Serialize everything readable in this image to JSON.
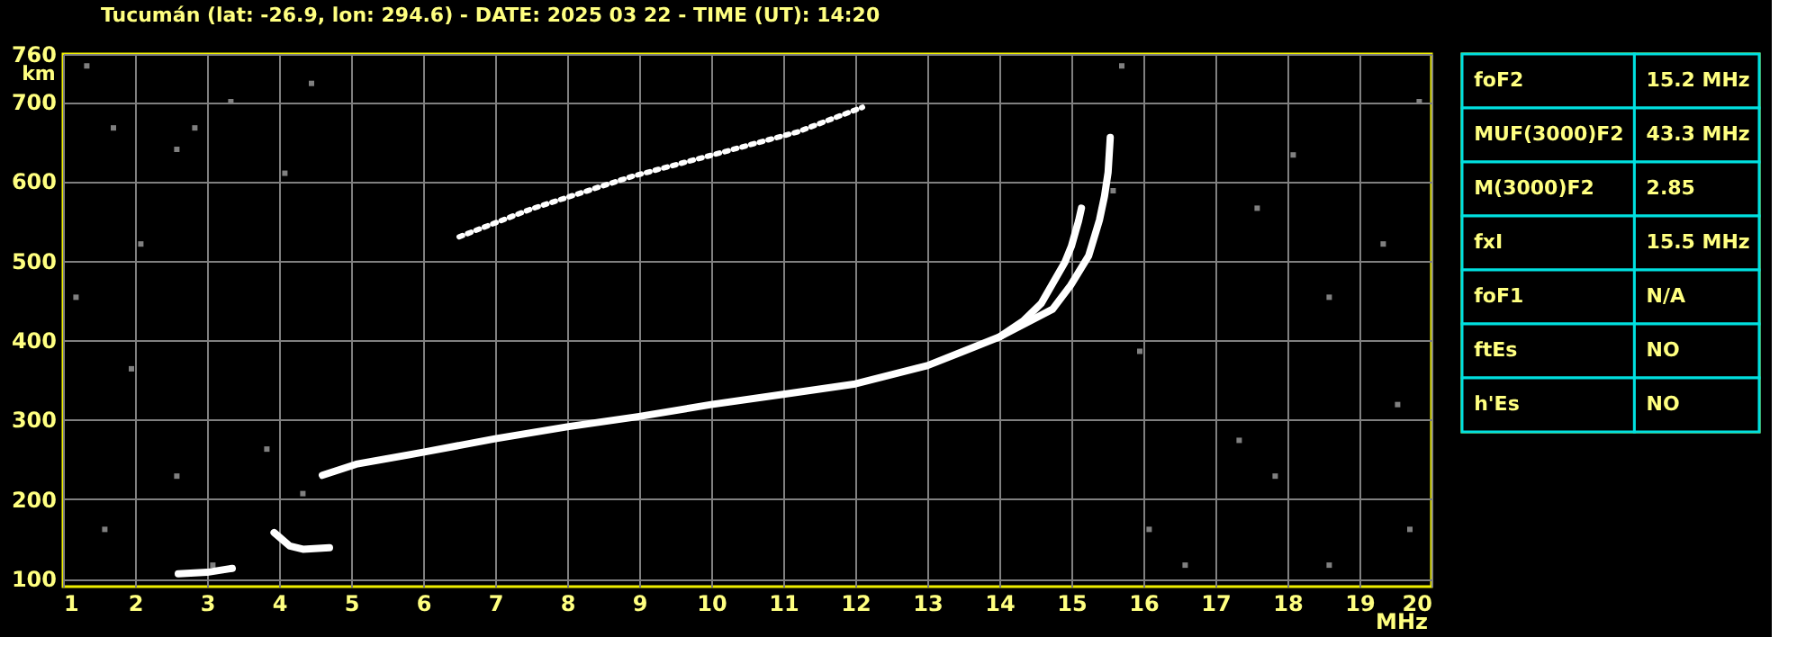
{
  "chart_data": [
    {
      "type": "line",
      "title": "Tucumán (lat: -26.9, lon: 294.6) - DATE: 2025 03 22 - TIME (UT): 14:20",
      "xlabel": "MHz",
      "ylabel": "km",
      "xlim": [
        1,
        20
      ],
      "ylim": [
        90,
        760
      ],
      "xticks": [
        1,
        2,
        3,
        4,
        5,
        6,
        7,
        8,
        9,
        10,
        11,
        12,
        13,
        14,
        15,
        16,
        17,
        18,
        19,
        20
      ],
      "yticks": [
        100,
        200,
        300,
        400,
        500,
        600,
        700,
        760
      ],
      "grid": true,
      "series": [
        {
          "type": "scatter",
          "marker": "square",
          "color": "#808080",
          "x": [
            1.33,
            1.7,
            2.58,
            2.83,
            4.45,
            4.08,
            1.18,
            1.95,
            2.58,
            1.58,
            4.33,
            3.83,
            15.95,
            16.08,
            17.33,
            18.58,
            19.33,
            19.7,
            19.83,
            18.08,
            16.58,
            18.58,
            17.83,
            15.7,
            3.08,
            2.08,
            3.33,
            17.58,
            19.53,
            15.58
          ],
          "values": [
            745,
            667,
            640,
            667,
            723,
            610,
            454,
            364,
            229,
            162,
            207,
            263,
            386,
            162,
            274,
            454,
            521,
            162,
            700,
            633,
            117,
            117,
            229,
            745,
            117,
            521,
            700,
            566,
            319,
            588
          ]
        },
        {
          "type": "line",
          "line_style": "solid",
          "color": "#ffffff",
          "x": [
            2.6,
            3.0,
            3.35
          ],
          "values": [
            106,
            108,
            113
          ]
        },
        {
          "type": "line",
          "line_style": "solid",
          "color": "#ffffff",
          "x": [
            3.93,
            4.15,
            4.33,
            4.7
          ],
          "values": [
            158,
            141,
            137,
            139
          ]
        },
        {
          "type": "line",
          "line_style": "solid",
          "color": "#ffffff",
          "x": [
            4.6,
            5.07,
            6,
            7,
            8,
            9,
            10,
            11,
            12,
            13,
            13.5,
            14,
            14.33,
            14.58,
            14.91,
            15.0,
            15.1,
            15.14
          ],
          "values": [
            230,
            244,
            259,
            276,
            291,
            304,
            319,
            332,
            345,
            368,
            386,
            404,
            424,
            446,
            498,
            518,
            550,
            566
          ]
        },
        {
          "type": "line",
          "line_style": "solid",
          "color": "#ffffff",
          "x": [
            14.0,
            14.74,
            14.99,
            15.24,
            15.39,
            15.46,
            15.51,
            15.54
          ],
          "values": [
            404,
            439,
            469,
            506,
            551,
            581,
            611,
            655
          ]
        },
        {
          "type": "line",
          "line_style": "dotted",
          "color": "#ffffff",
          "x": [
            6.5,
            7.5,
            8.9,
            10.1,
            11.2,
            12.1
          ],
          "values": [
            530,
            565,
            606,
            635,
            662,
            693
          ]
        }
      ]
    },
    {
      "type": "other",
      "categories": [
        "foF2",
        "MUF(3000)F2",
        "M(3000)F2",
        "fxI",
        "foF1",
        "ftEs",
        "h'Es"
      ],
      "value_labels": [
        "15.2 MHz",
        "43.3 MHz",
        "2.85",
        "15.5 MHz",
        "N/A",
        "NO",
        "NO"
      ]
    }
  ]
}
